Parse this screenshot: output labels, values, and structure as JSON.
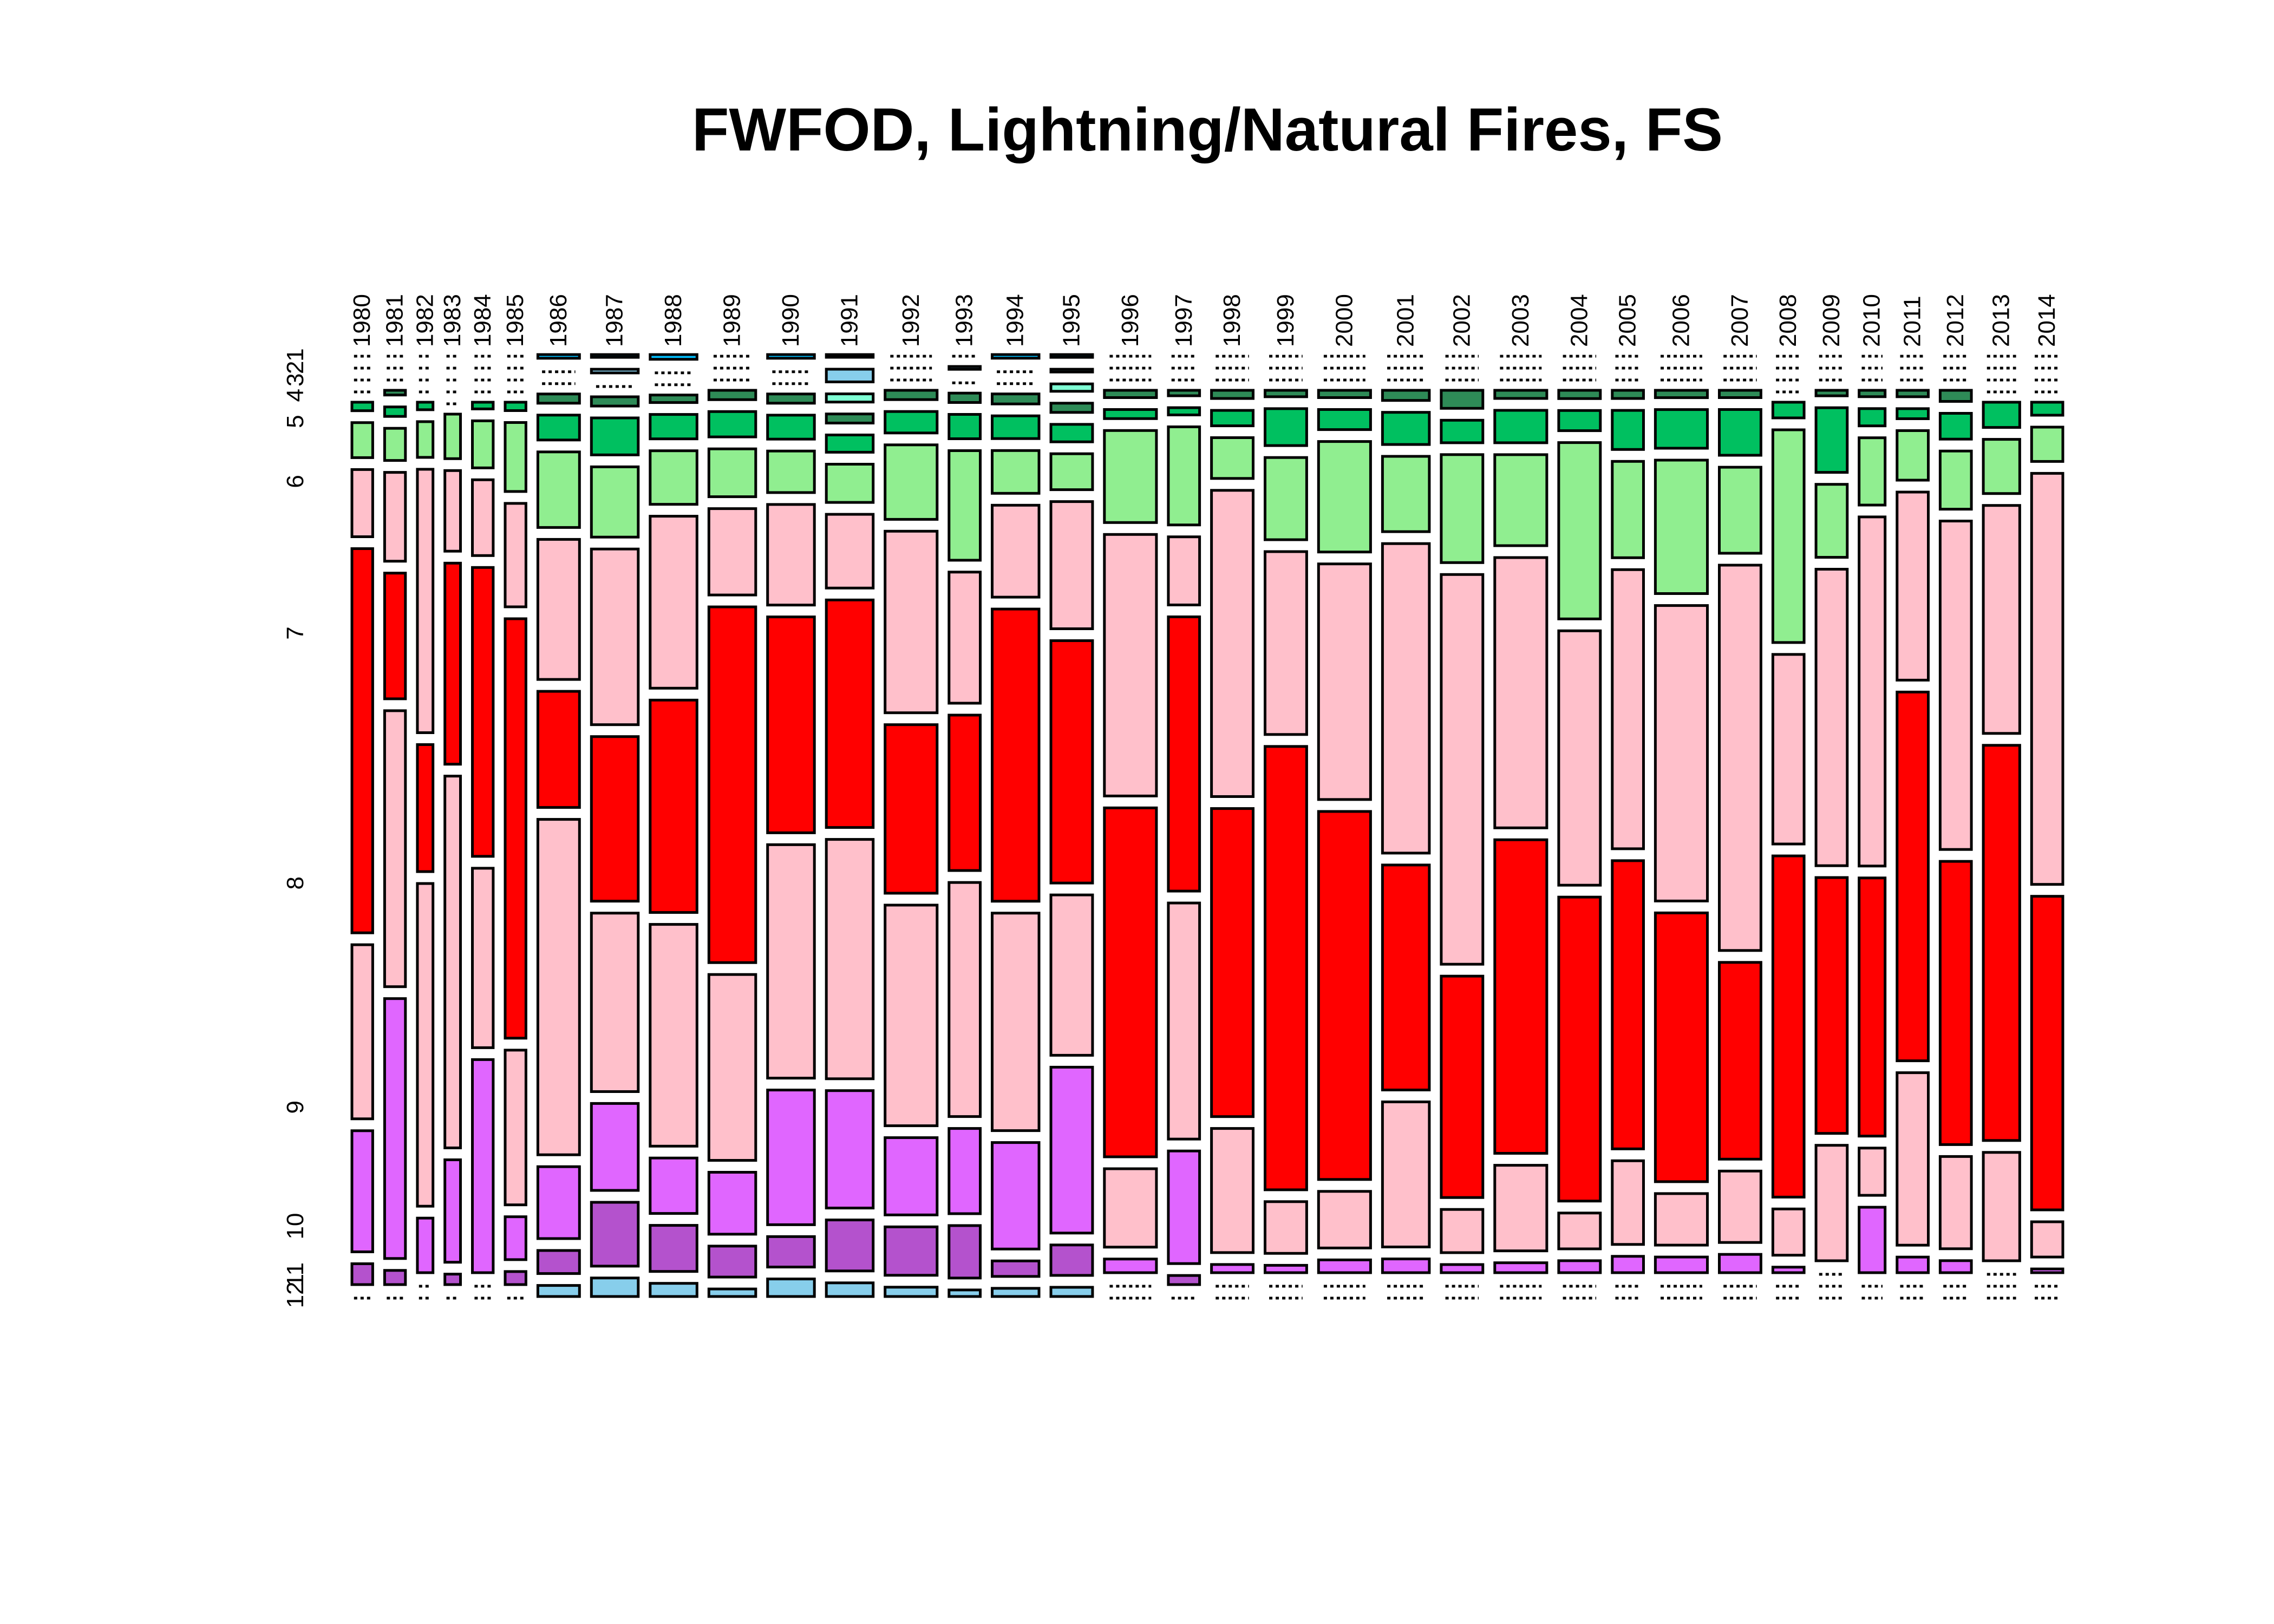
{
  "chart_data": {
    "type": "mosaic",
    "title": "FWFOD, Lightning/Natural Fires, FS",
    "x_variable": "year",
    "y_variable": "month",
    "xlabel": "",
    "ylabel": "",
    "years": [
      "1980",
      "1981",
      "1982",
      "1983",
      "1984",
      "1985",
      "1986",
      "1987",
      "1988",
      "1989",
      "1990",
      "1991",
      "1992",
      "1993",
      "1994",
      "1995",
      "1996",
      "1997",
      "1998",
      "1999",
      "2000",
      "2001",
      "2002",
      "2003",
      "2004",
      "2005",
      "2006",
      "2007",
      "2008",
      "2009",
      "2010",
      "2011",
      "2012",
      "2013",
      "2014"
    ],
    "months": [
      "1",
      "2",
      "3",
      "4",
      "5",
      "6",
      "7",
      "8",
      "9",
      "10",
      "11",
      "12"
    ],
    "month_tick_labels": [
      "1",
      "2",
      "3",
      "4",
      "5",
      "6",
      "7",
      "8",
      "9",
      "10",
      "11",
      "12"
    ],
    "month_colors": {
      "1": "#00bfff",
      "2": "#87ceeb",
      "3": "#7fffd4",
      "4": "#2e8b57",
      "5": "#00c060",
      "6": "#90ee90",
      "7": "#ffc0cb",
      "8": "#ff0000",
      "9": "#ffc0cb",
      "10": "#e066ff",
      "11": "#b452cd",
      "12": "#87ceeb"
    },
    "year_column_width_units": [
      4,
      4,
      3,
      3,
      4,
      4,
      8,
      9,
      9,
      9,
      9,
      9,
      10,
      6,
      9,
      8,
      10,
      6,
      8,
      8,
      10,
      9,
      8,
      10,
      8,
      6,
      10,
      8,
      6,
      6,
      5,
      6,
      6,
      7,
      6
    ],
    "proportions_by_year": {
      "1980": [
        0,
        0,
        0,
        0,
        0.009,
        0.037,
        0.071,
        0.406,
        0.184,
        0.128,
        0.022,
        0
      ],
      "1981": [
        0,
        0,
        0,
        0.005,
        0.01,
        0.034,
        0.094,
        0.133,
        0.292,
        0.275,
        0.015,
        0
      ],
      "1982": [
        0,
        0,
        0,
        0,
        0.008,
        0.038,
        0.28,
        0.135,
        0.343,
        0.058,
        0,
        0
      ],
      "1983": [
        0,
        0,
        0,
        0,
        0,
        0.047,
        0.085,
        0.212,
        0.392,
        0.108,
        0.011,
        0
      ],
      "1984": [
        0,
        0,
        0,
        0,
        0.007,
        0.049,
        0.079,
        0.301,
        0.187,
        0.222,
        0,
        0
      ],
      "1985": [
        0,
        0,
        0,
        0,
        0.009,
        0.074,
        0.111,
        0.45,
        0.166,
        0.046,
        0.014,
        0
      ],
      "1986": [
        0.004,
        0,
        0,
        0.01,
        0.027,
        0.082,
        0.152,
        0.126,
        0.364,
        0.078,
        0.025,
        0.012
      ],
      "1987": [
        0.003,
        0.004,
        0,
        0.01,
        0.04,
        0.076,
        0.19,
        0.178,
        0.193,
        0.094,
        0.069,
        0.02
      ],
      "1988": [
        0.005,
        0,
        0,
        0.008,
        0.026,
        0.057,
        0.183,
        0.226,
        0.236,
        0.059,
        0.049,
        0.014
      ],
      "1989": [
        0,
        0,
        0,
        0.01,
        0.027,
        0.051,
        0.092,
        0.379,
        0.198,
        0.066,
        0.033,
        0.008
      ],
      "1990": [
        0.004,
        0,
        0,
        0.01,
        0.026,
        0.045,
        0.109,
        0.234,
        0.253,
        0.146,
        0.033,
        0.019
      ],
      "1991": [
        0.003,
        0.014,
        0.009,
        0.01,
        0.019,
        0.042,
        0.081,
        0.25,
        0.263,
        0.129,
        0.056,
        0.015
      ],
      "1992": [
        0,
        0,
        0,
        0.01,
        0.023,
        0.08,
        0.195,
        0.181,
        0.237,
        0.083,
        0.052,
        0.01
      ],
      "1993": [
        0,
        0.003,
        0,
        0.01,
        0.026,
        0.117,
        0.14,
        0.166,
        0.25,
        0.091,
        0.056,
        0.007
      ],
      "1994": [
        0.004,
        0,
        0,
        0.011,
        0.025,
        0.047,
        0.101,
        0.321,
        0.239,
        0.117,
        0.017,
        0.009
      ],
      "1995": [
        0.003,
        0.003,
        0.008,
        0.01,
        0.019,
        0.039,
        0.138,
        0.263,
        0.174,
        0.18,
        0.033,
        0.01
      ],
      "1996": [
        0,
        0,
        0,
        0.008,
        0.01,
        0.101,
        0.287,
        0.383,
        0.086,
        0.015,
        0,
        0
      ],
      "1997": [
        0,
        0,
        0,
        0.006,
        0.008,
        0.108,
        0.075,
        0.302,
        0.26,
        0.124,
        0.01,
        0
      ],
      "1998": [
        0,
        0,
        0,
        0.009,
        0.017,
        0.045,
        0.338,
        0.34,
        0.137,
        0.009,
        0,
        0
      ],
      "1999": [
        0,
        0,
        0,
        0.007,
        0.04,
        0.089,
        0.198,
        0.48,
        0.056,
        0.008,
        0,
        0
      ],
      "2000": [
        0,
        0,
        0,
        0.008,
        0.022,
        0.121,
        0.258,
        0.403,
        0.062,
        0.014,
        0,
        0
      ],
      "2001": [
        0,
        0,
        0,
        0.011,
        0.035,
        0.082,
        0.337,
        0.245,
        0.158,
        0.015,
        0,
        0
      ],
      "2002": [
        0,
        0,
        0,
        0.02,
        0.025,
        0.12,
        0.433,
        0.246,
        0.048,
        0.009,
        0,
        0
      ],
      "2003": [
        0,
        0,
        0,
        0.009,
        0.036,
        0.101,
        0.3,
        0.348,
        0.095,
        0.011,
        0,
        0
      ],
      "2004": [
        0,
        0,
        0,
        0.009,
        0.022,
        0.192,
        0.277,
        0.331,
        0.039,
        0.013,
        0,
        0
      ],
      "2005": [
        0,
        0,
        0,
        0.009,
        0.043,
        0.106,
        0.307,
        0.317,
        0.092,
        0.018,
        0,
        0
      ],
      "2006": [
        0,
        0,
        0,
        0.008,
        0.042,
        0.145,
        0.321,
        0.292,
        0.056,
        0.017,
        0,
        0
      ],
      "2007": [
        0,
        0,
        0,
        0.008,
        0.05,
        0.094,
        0.421,
        0.215,
        0.078,
        0.02,
        0,
        0
      ],
      "2008": [
        0,
        0,
        0,
        0,
        0.017,
        0.23,
        0.205,
        0.369,
        0.05,
        0.006,
        0,
        0
      ],
      "2009": [
        0,
        0,
        0,
        0.006,
        0.07,
        0.079,
        0.321,
        0.277,
        0.125,
        0,
        0,
        0
      ],
      "2010": [
        0,
        0,
        0,
        0.007,
        0.019,
        0.074,
        0.384,
        0.284,
        0.052,
        0.072,
        0,
        0
      ],
      "2011": [
        0,
        0,
        0,
        0.007,
        0.011,
        0.054,
        0.205,
        0.402,
        0.188,
        0.017,
        0,
        0
      ],
      "2012": [
        0,
        0,
        0,
        0.012,
        0.028,
        0.063,
        0.356,
        0.307,
        0.1,
        0.013,
        0,
        0
      ],
      "2013": [
        0,
        0,
        0,
        0,
        0.027,
        0.058,
        0.244,
        0.423,
        0.116,
        0,
        0,
        0
      ],
      "2014": [
        0,
        0,
        0,
        0,
        0.014,
        0.037,
        0.443,
        0.338,
        0.038,
        0.004,
        0,
        0
      ]
    },
    "grid": false,
    "legend": "none"
  }
}
